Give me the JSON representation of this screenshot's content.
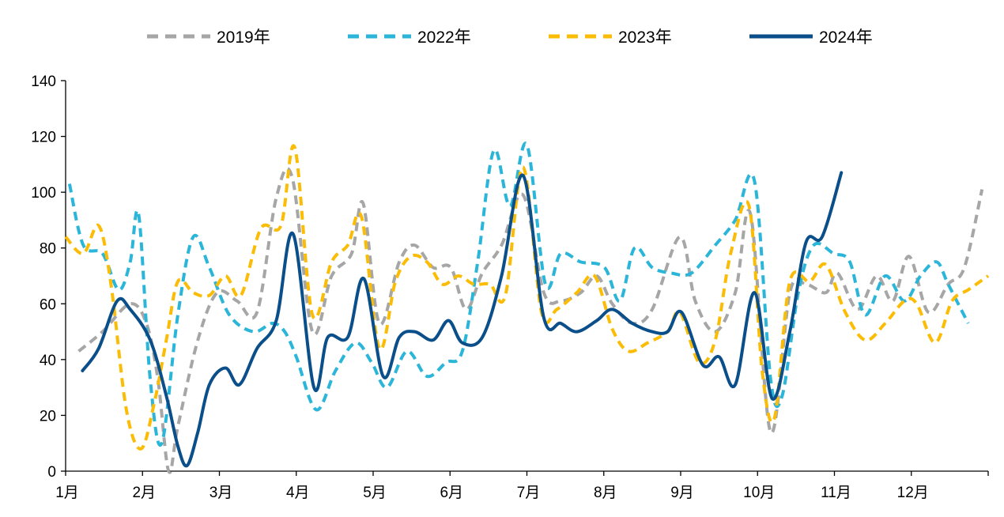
{
  "chart_data": {
    "type": "line",
    "title": "",
    "xlabel": "",
    "ylabel": "",
    "ylim": [
      0,
      140
    ],
    "yticks": [
      0,
      20,
      40,
      60,
      80,
      100,
      120,
      140
    ],
    "xlim": [
      1,
      13
    ],
    "x_tick_labels": [
      "1月",
      "2月",
      "3月",
      "4月",
      "5月",
      "6月",
      "7月",
      "8月",
      "9月",
      "10月",
      "11月",
      "12月"
    ],
    "legend_position": "top",
    "grid": false,
    "series": [
      {
        "name": "2019年",
        "color": "#a6a6a6",
        "dash": true,
        "x": [
          1.17,
          1.48,
          1.84,
          2.05,
          2.2,
          2.34,
          2.46,
          2.72,
          2.97,
          3.23,
          3.49,
          3.74,
          3.95,
          4.21,
          4.46,
          4.72,
          4.87,
          5.08,
          5.34,
          5.54,
          5.78,
          6.01,
          6.21,
          6.42,
          6.67,
          6.95,
          7.22,
          7.44,
          7.7,
          7.91,
          8.11,
          8.37,
          8.63,
          8.99,
          9.19,
          9.45,
          9.71,
          9.91,
          10.17,
          10.42,
          10.63,
          10.89,
          11.04,
          11.3,
          11.55,
          11.76,
          11.97,
          12.22,
          12.48,
          12.69,
          12.92
        ],
        "y": [
          43,
          50,
          60,
          53,
          33,
          0,
          16,
          47,
          64,
          61,
          57,
          98,
          105,
          50,
          70,
          78,
          96,
          53,
          75,
          81,
          73,
          73,
          58,
          71,
          81,
          99,
          64,
          61,
          64,
          70,
          60,
          53,
          58,
          84,
          61,
          50,
          64,
          92,
          14,
          64,
          67,
          64,
          71,
          58,
          70,
          61,
          77,
          57,
          67,
          73,
          101
        ]
      },
      {
        "name": "2022年",
        "color": "#2bb5d8",
        "dash": true,
        "x": [
          1.05,
          1.23,
          1.48,
          1.69,
          1.84,
          1.95,
          2.1,
          2.25,
          2.46,
          2.66,
          2.87,
          3.13,
          3.44,
          3.69,
          3.85,
          4.0,
          4.26,
          4.51,
          4.77,
          4.98,
          5.18,
          5.44,
          5.7,
          5.95,
          6.16,
          6.36,
          6.57,
          6.78,
          7.0,
          7.24,
          7.44,
          7.7,
          8.01,
          8.21,
          8.4,
          8.63,
          8.88,
          9.14,
          9.45,
          9.71,
          9.96,
          10.17,
          10.32,
          10.53,
          10.73,
          10.99,
          11.2,
          11.4,
          11.66,
          11.91,
          12.12,
          12.33,
          12.48,
          12.74
        ],
        "y": [
          103,
          81,
          78,
          65,
          75,
          92,
          33,
          10,
          56,
          84,
          73,
          56,
          50,
          53,
          50,
          41,
          22,
          36,
          46,
          39,
          30,
          43,
          34,
          39,
          43,
          75,
          115,
          95,
          117,
          67,
          78,
          75,
          73,
          61,
          80,
          73,
          71,
          71,
          81,
          90,
          104,
          33,
          27,
          64,
          81,
          78,
          75,
          56,
          70,
          61,
          70,
          75,
          67,
          53
        ]
      },
      {
        "name": "2023年",
        "color": "#fbbc05",
        "dash": true,
        "x": [
          1.0,
          1.23,
          1.43,
          1.59,
          1.79,
          1.98,
          2.15,
          2.31,
          2.46,
          2.66,
          2.87,
          3.08,
          3.28,
          3.54,
          3.8,
          3.98,
          4.21,
          4.46,
          4.67,
          4.85,
          5.08,
          5.29,
          5.49,
          5.7,
          5.9,
          6.11,
          6.31,
          6.52,
          6.72,
          6.95,
          7.19,
          7.39,
          7.65,
          7.88,
          8.11,
          8.32,
          8.57,
          8.83,
          8.99,
          9.24,
          9.45,
          9.65,
          9.89,
          10.06,
          10.22,
          10.42,
          10.68,
          10.89,
          11.14,
          11.4,
          11.66,
          11.91,
          12.07,
          12.31,
          12.53,
          12.74,
          13.0
        ],
        "y": [
          84,
          78,
          88,
          67,
          22,
          8,
          24,
          47,
          68,
          64,
          63,
          70,
          63,
          87,
          88,
          116,
          56,
          75,
          81,
          91,
          44,
          68,
          77,
          75,
          67,
          70,
          67,
          67,
          63,
          109,
          57,
          58,
          64,
          70,
          51,
          43,
          46,
          50,
          57,
          39,
          47,
          78,
          95,
          36,
          19,
          68,
          68,
          74,
          57,
          47,
          53,
          61,
          60,
          46,
          61,
          65,
          70
        ]
      },
      {
        "name": "2024年",
        "color": "#0b4f8a",
        "dash": false,
        "x": [
          1.22,
          1.43,
          1.67,
          1.84,
          2.1,
          2.31,
          2.46,
          2.58,
          2.72,
          2.87,
          3.08,
          3.26,
          3.49,
          3.74,
          3.96,
          4.23,
          4.41,
          4.67,
          4.88,
          5.13,
          5.34,
          5.54,
          5.78,
          5.98,
          6.16,
          6.42,
          6.67,
          6.95,
          7.22,
          7.44,
          7.65,
          7.91,
          8.11,
          8.37,
          8.63,
          8.83,
          9.01,
          9.29,
          9.5,
          9.71,
          9.96,
          10.19,
          10.42,
          10.63,
          10.84,
          11.09
        ],
        "y": [
          36,
          44,
          61,
          58,
          47,
          27,
          9,
          2,
          14,
          31,
          37,
          31,
          44,
          54,
          85,
          30,
          48,
          48,
          69,
          34,
          48,
          50,
          47,
          54,
          46,
          48,
          70,
          106,
          55,
          53,
          50,
          54,
          58,
          53,
          50,
          50,
          57,
          38,
          41,
          31,
          64,
          26,
          50,
          82,
          84,
          107
        ]
      }
    ]
  }
}
